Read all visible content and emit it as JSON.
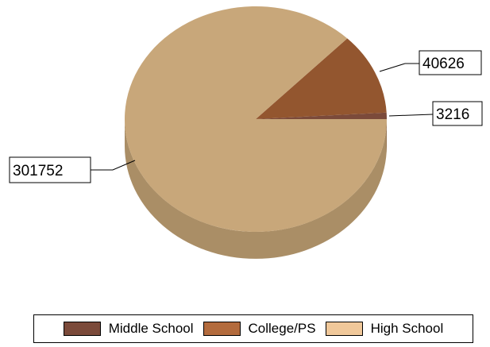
{
  "chart_data": {
    "type": "pie",
    "title": "",
    "slices": [
      {
        "name": "Middle School",
        "value": 3216,
        "color": "#7b4a3a",
        "side_color": "#5e382c"
      },
      {
        "name": "College/PS",
        "value": 40626,
        "color": "#93562f",
        "side_color": "#6f4024"
      },
      {
        "name": "High School",
        "value": 301752,
        "color": "#c8a77a",
        "side_color": "#aa8e66"
      }
    ],
    "data_labels": [
      "3216",
      "40626",
      "301752"
    ],
    "legend": {
      "placement": "bottom",
      "entries": [
        {
          "label": "Middle School",
          "color": "#7b4a3a"
        },
        {
          "label": "College/PS",
          "color": "#b36b3d"
        },
        {
          "label": "High School",
          "color": "#f0c89a"
        }
      ]
    },
    "style": "3d"
  }
}
